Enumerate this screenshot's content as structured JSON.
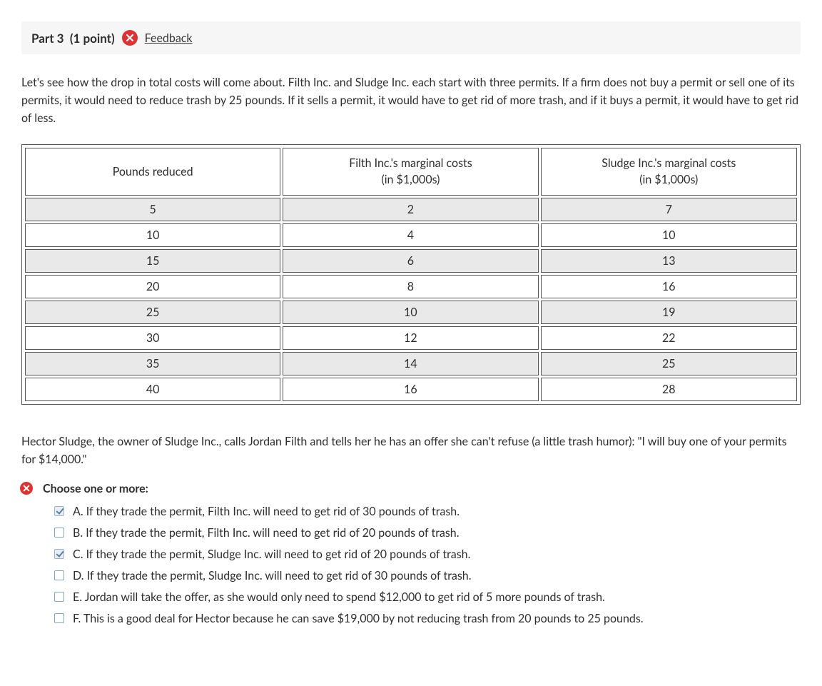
{
  "header": {
    "part_label": "Part 3",
    "points_label": "(1 point)",
    "feedback_label": "Feedback"
  },
  "intro_text": "Let's see how the drop in total costs will come about. Filth Inc. and Sludge Inc. each start with three permits. If a firm does not buy a permit or sell one of its permits, it would need to reduce trash by 25 pounds. If it sells a permit, it would have to get rid of more trash, and if it buys a permit, it would have to get rid of less.",
  "table": {
    "columns": [
      "Pounds reduced",
      "Filth Inc.'s marginal costs\n(in $1,000s)",
      "Sludge Inc.'s marginal costs\n(in $1,000s)"
    ],
    "rows": [
      [
        "5",
        "2",
        "7"
      ],
      [
        "10",
        "4",
        "10"
      ],
      [
        "15",
        "6",
        "13"
      ],
      [
        "20",
        "8",
        "16"
      ],
      [
        "25",
        "10",
        "19"
      ],
      [
        "30",
        "12",
        "22"
      ],
      [
        "35",
        "14",
        "25"
      ],
      [
        "40",
        "16",
        "28"
      ]
    ],
    "col_widths_pct": [
      33.3,
      33.3,
      33.4
    ],
    "header_bg": "#ffffff",
    "row_alt_bg": "#e9e9e9",
    "border_color": "#555555",
    "cell_fontsize": 16
  },
  "post_text": "Hector Sludge, the owner of Sludge Inc., calls Jordan Filth and tells her he has an offer she can't refuse (a little trash humor): \"I will buy one of your permits for $14,000.\"",
  "question": {
    "prompt_label": "Choose one or more:",
    "options": [
      {
        "letter": "A.",
        "text": "If they trade the permit, Filth Inc. will need to get rid of 30 pounds of trash.",
        "checked": true
      },
      {
        "letter": "B.",
        "text": "If they trade the permit, Filth Inc. will need to get rid of 20 pounds of trash.",
        "checked": false
      },
      {
        "letter": "C.",
        "text": "If they trade the permit, Sludge Inc. will need to get rid of 20 pounds of trash.",
        "checked": true
      },
      {
        "letter": "D.",
        "text": "If they trade the permit, Sludge Inc. will need to get rid of 30 pounds of trash.",
        "checked": false
      },
      {
        "letter": "E.",
        "text": "Jordan will take the offer, as she would only need to spend $12,000 to get rid of 5 more pounds of trash.",
        "checked": false
      },
      {
        "letter": "F.",
        "text": "This is a good deal for Hector because he can save $19,000 by not reducing trash from 20 pounds to 25 pounds.",
        "checked": false
      }
    ]
  },
  "colors": {
    "error_red": "#e03131",
    "checkbox_border": "#7fa7c9",
    "text": "#2e2e2e"
  }
}
